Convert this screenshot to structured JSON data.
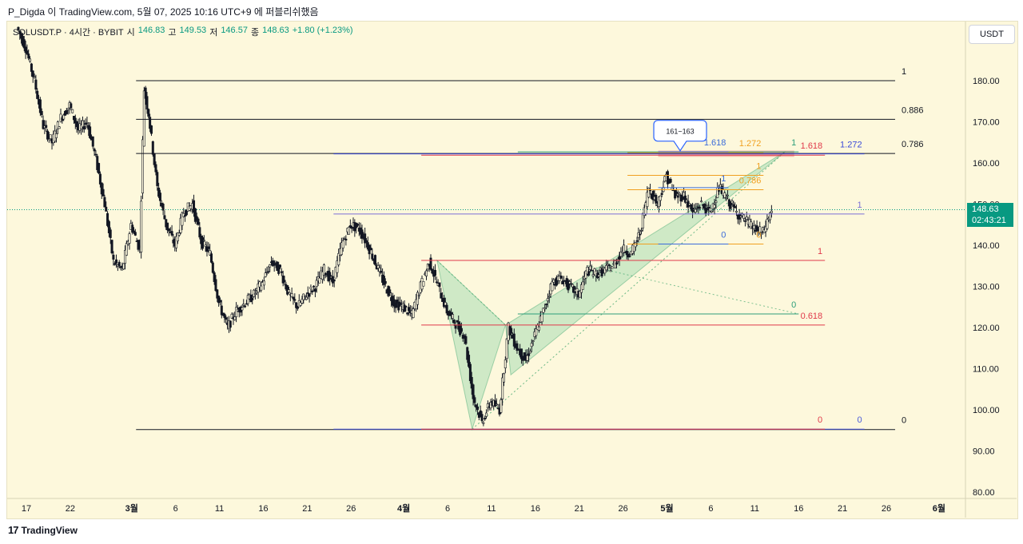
{
  "caption": "P_Digda 이 TradingView.com, 5월 07, 2025 10:16 UTC+9 에 퍼블리쉬했음",
  "footer": {
    "brand": "TradingView",
    "mark": "17"
  },
  "symbol_bar": {
    "symbol": "SOLUSDT.P · 4시간 · BYBIT",
    "open_label": "시",
    "open": "146.83",
    "high_label": "고",
    "high": "149.53",
    "low_label": "저",
    "low": "146.57",
    "close_label": "종",
    "close": "148.63",
    "change": "+1.80 (+1.23%)"
  },
  "currency": "USDT",
  "last_price": {
    "price": "148.63",
    "countdown": "02:43:21"
  },
  "colors": {
    "up": "#089981",
    "down": "#f23645",
    "chart_bg": "#fdf8dc"
  },
  "chart_data": {
    "type": "candlestick",
    "y_axis": {
      "range": [
        78,
        190
      ],
      "ticks": [
        180,
        170,
        160,
        150,
        140,
        130,
        120,
        110,
        100,
        90,
        80
      ],
      "tick_labels": [
        "180.00",
        "170.00",
        "160.00",
        "150.00",
        "140.00",
        "130.00",
        "120.00",
        "110.00",
        "100.00",
        "90.00",
        "80.00"
      ]
    },
    "x_axis": {
      "range": [
        0,
        105.5
      ],
      "ticks": [
        {
          "d": 0,
          "label": "17",
          "bold": false
        },
        {
          "d": 5,
          "label": "22",
          "bold": false
        },
        {
          "d": 12,
          "label": "3월",
          "bold": true
        },
        {
          "d": 17,
          "label": "6",
          "bold": false
        },
        {
          "d": 22,
          "label": "11",
          "bold": false
        },
        {
          "d": 27,
          "label": "16",
          "bold": false
        },
        {
          "d": 32,
          "label": "21",
          "bold": false
        },
        {
          "d": 37,
          "label": "26",
          "bold": false
        },
        {
          "d": 43,
          "label": "4월",
          "bold": true
        },
        {
          "d": 48,
          "label": "6",
          "bold": false
        },
        {
          "d": 53,
          "label": "11",
          "bold": false
        },
        {
          "d": 58,
          "label": "16",
          "bold": false
        },
        {
          "d": 63,
          "label": "21",
          "bold": false
        },
        {
          "d": 68,
          "label": "26",
          "bold": false
        },
        {
          "d": 73,
          "label": "5월",
          "bold": true
        },
        {
          "d": 78,
          "label": "6",
          "bold": false
        },
        {
          "d": 83,
          "label": "11",
          "bold": false
        },
        {
          "d": 88,
          "label": "16",
          "bold": false
        },
        {
          "d": 93,
          "label": "21",
          "bold": false
        },
        {
          "d": 98,
          "label": "26",
          "bold": false
        },
        {
          "d": 104,
          "label": "6월",
          "bold": true
        }
      ]
    },
    "price_path": [
      [
        -1,
        193
      ],
      [
        0,
        188
      ],
      [
        1,
        180
      ],
      [
        2,
        169
      ],
      [
        3,
        165
      ],
      [
        4,
        171
      ],
      [
        5,
        174
      ],
      [
        6,
        168
      ],
      [
        7,
        170
      ],
      [
        8,
        161
      ],
      [
        9,
        150
      ],
      [
        10,
        136
      ],
      [
        11,
        134
      ],
      [
        12,
        145
      ],
      [
        13,
        139
      ],
      [
        13.5,
        178
      ],
      [
        14,
        172
      ],
      [
        15,
        154
      ],
      [
        16,
        145
      ],
      [
        17,
        140
      ],
      [
        18,
        148
      ],
      [
        19,
        150
      ],
      [
        20,
        141
      ],
      [
        21,
        138
      ],
      [
        22,
        126
      ],
      [
        23,
        120
      ],
      [
        24,
        124
      ],
      [
        25,
        126
      ],
      [
        26,
        128
      ],
      [
        27,
        131
      ],
      [
        28,
        136
      ],
      [
        29,
        134
      ],
      [
        30,
        128
      ],
      [
        31,
        125
      ],
      [
        32,
        128
      ],
      [
        33,
        130
      ],
      [
        34,
        134
      ],
      [
        35,
        131
      ],
      [
        36,
        140
      ],
      [
        37,
        145
      ],
      [
        38,
        144
      ],
      [
        39,
        140
      ],
      [
        40,
        135
      ],
      [
        41,
        130
      ],
      [
        42,
        126
      ],
      [
        43,
        125
      ],
      [
        44,
        123
      ],
      [
        45,
        130
      ],
      [
        46,
        136
      ],
      [
        47,
        130
      ],
      [
        48,
        124
      ],
      [
        49,
        121
      ],
      [
        50,
        118
      ],
      [
        51,
        103
      ],
      [
        52,
        97
      ],
      [
        53,
        102
      ],
      [
        54,
        100
      ],
      [
        55,
        120
      ],
      [
        56,
        115
      ],
      [
        57,
        112
      ],
      [
        58,
        118
      ],
      [
        59,
        124
      ],
      [
        60,
        131
      ],
      [
        61,
        132
      ],
      [
        62,
        130
      ],
      [
        63,
        128
      ],
      [
        64,
        134
      ],
      [
        65,
        133
      ],
      [
        66,
        134
      ],
      [
        67,
        135
      ],
      [
        68,
        139
      ],
      [
        69,
        138
      ],
      [
        70,
        143
      ],
      [
        71,
        154
      ],
      [
        72,
        150
      ],
      [
        73,
        157
      ],
      [
        74,
        152
      ],
      [
        75,
        152
      ],
      [
        76,
        148
      ],
      [
        77,
        150
      ],
      [
        78,
        148
      ],
      [
        79,
        154
      ],
      [
        80,
        151
      ],
      [
        81,
        148
      ],
      [
        82,
        146
      ],
      [
        83,
        144
      ],
      [
        84,
        143
      ],
      [
        85,
        148.6
      ]
    ],
    "fib_lines": [
      {
        "x1": 12.5,
        "x2": 99,
        "y": 180.0,
        "color": "#131722",
        "label": "1",
        "label_pos": "right"
      },
      {
        "x1": 12.5,
        "x2": 99,
        "y": 170.6,
        "color": "#131722",
        "label": "0.886",
        "label_pos": "right"
      },
      {
        "x1": 12.5,
        "x2": 99,
        "y": 162.3,
        "color": "#131722",
        "label": "0.786",
        "label_pos": "right"
      },
      {
        "x1": 12.5,
        "x2": 99,
        "y": 95.2,
        "color": "#131722",
        "label": "0",
        "label_pos": "right"
      },
      {
        "x1": 35,
        "x2": 95.5,
        "y": 162.2,
        "color": "#3b4bd9",
        "label": "1.272",
        "label_pos": "right-in"
      },
      {
        "x1": 35,
        "x2": 95.5,
        "y": 147.6,
        "color": "#7b6fd6",
        "label": "1",
        "label_pos": "right-in"
      },
      {
        "x1": 35,
        "x2": 95.5,
        "y": 95.3,
        "color": "#4a5ad9",
        "label": "0",
        "label_pos": "right-in"
      },
      {
        "x1": 45,
        "x2": 91,
        "y": 161.9,
        "color": "#e0394a",
        "label": "1.618",
        "label_pos": "right-in"
      },
      {
        "x1": 45,
        "x2": 91,
        "y": 136.3,
        "color": "#e0394a",
        "label": "1",
        "label_pos": "right-in"
      },
      {
        "x1": 45,
        "x2": 91,
        "y": 120.6,
        "color": "#e0394a",
        "label": "0.618",
        "label_pos": "right-in"
      },
      {
        "x1": 45,
        "x2": 91,
        "y": 95.3,
        "color": "#e0394a",
        "label": "0",
        "label_pos": "right-in"
      },
      {
        "x1": 68.5,
        "x2": 84,
        "y": 162.5,
        "color": "#f0a020",
        "label": "1.272",
        "label_pos": "right-in"
      },
      {
        "x1": 68.5,
        "x2": 84,
        "y": 157.0,
        "color": "#f0a020",
        "label": "1",
        "label_pos": "right-in"
      },
      {
        "x1": 68.5,
        "x2": 84,
        "y": 153.5,
        "color": "#f0a020",
        "label": "0.786",
        "label_pos": "right-in"
      },
      {
        "x1": 68.5,
        "x2": 84,
        "y": 140.3,
        "color": "#f0a020",
        "label": "0",
        "label_pos": "right-in"
      },
      {
        "x1": 56,
        "x2": 88,
        "y": 162.7,
        "color": "#2e9e7a",
        "label": "1",
        "label_pos": "right-in"
      },
      {
        "x1": 56,
        "x2": 88,
        "y": 123.3,
        "color": "#2e9e7a",
        "label": "0",
        "label_pos": "right-in"
      },
      {
        "x1": 72,
        "x2": 80,
        "y": 162.7,
        "color": "#3b6bd9",
        "label": "1.618",
        "label_pos": "right-in"
      },
      {
        "x1": 72,
        "x2": 80,
        "y": 154.0,
        "color": "#3b6bd9",
        "label": "1",
        "label_pos": "right-in"
      },
      {
        "x1": 72,
        "x2": 80,
        "y": 140.3,
        "color": "#3b6bd9",
        "label": "0",
        "label_pos": "right-in"
      }
    ],
    "harmonic_pattern": {
      "color": "#2e9e63",
      "points": [
        [
          46.8,
          136.3
        ],
        [
          50.8,
          95.3
        ],
        [
          54.6,
          120.6
        ],
        [
          55.2,
          108.5
        ],
        [
          86.5,
          162.8
        ]
      ]
    },
    "callout": {
      "text": "161~163",
      "x": 74.5,
      "y": 162.2
    },
    "target_zone": {
      "x1": 72,
      "x2": 87.5,
      "y1": 161.5,
      "y2": 163.0,
      "color": "#e0394a"
    }
  }
}
